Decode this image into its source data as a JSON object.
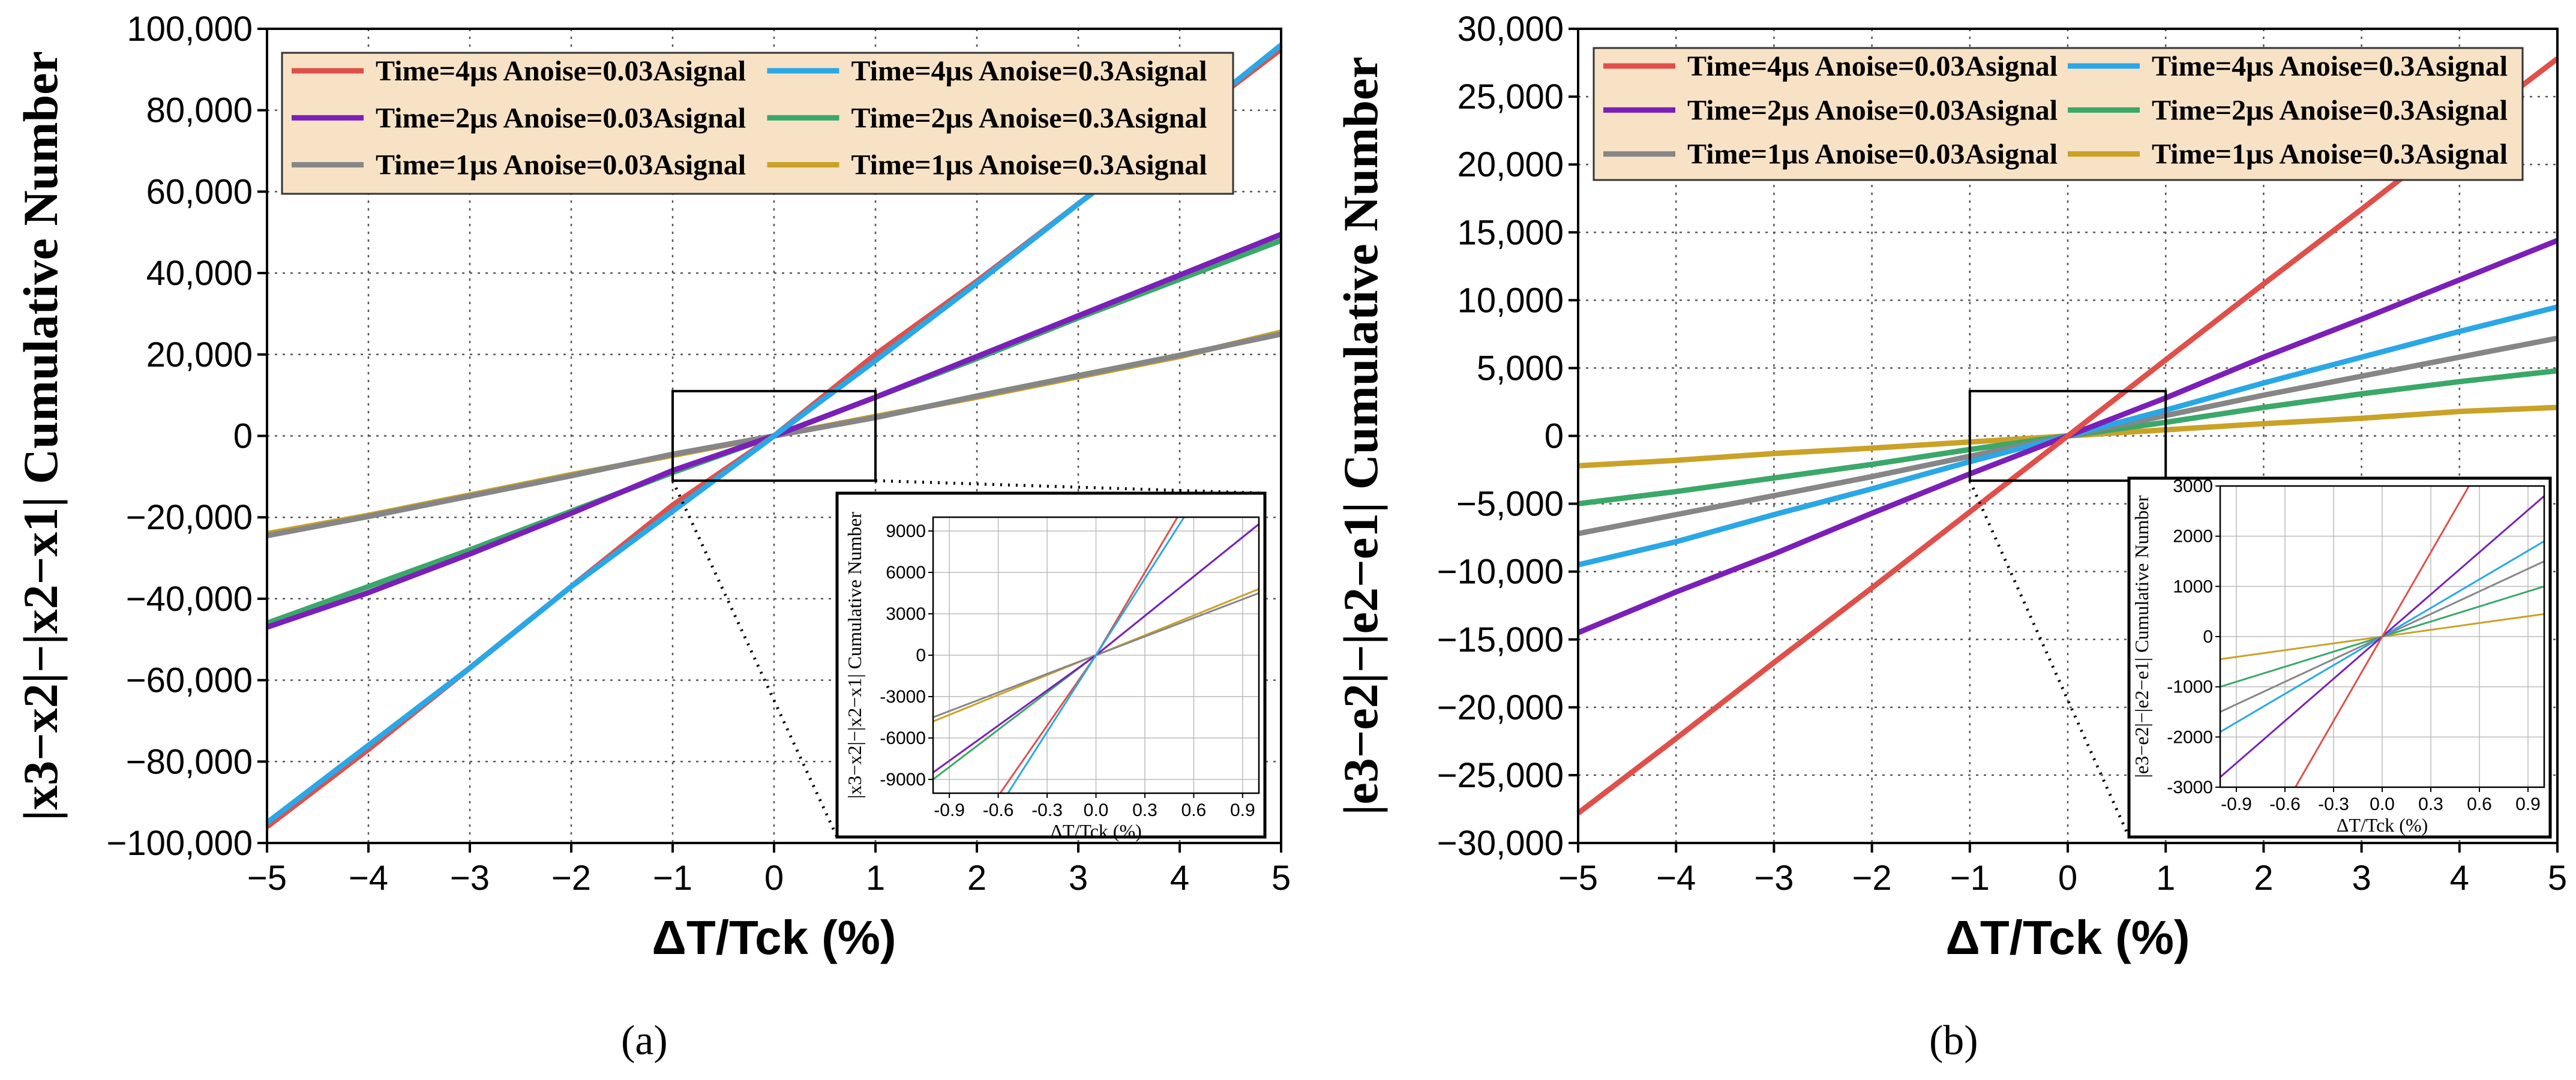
{
  "figure": {
    "caption_a": "(a)",
    "caption_b": "(b)"
  },
  "series_colors": {
    "t4_003": "#e0504a",
    "t4_03": "#2aa7e6",
    "t2_003": "#7b1fb8",
    "t2_03": "#3aa868",
    "t1_003": "#868686",
    "t1_03": "#c9a227"
  },
  "legend_entries": [
    {
      "key": "t4_003",
      "text": "Time=4μs  Anoise=0.03Asignal"
    },
    {
      "key": "t4_03",
      "text": "Time=4μs  Anoise=0.3Asignal"
    },
    {
      "key": "t2_003",
      "text": "Time=2μs  Anoise=0.03Asignal"
    },
    {
      "key": "t2_03",
      "text": "Time=2μs  Anoise=0.3Asignal"
    },
    {
      "key": "t1_003",
      "text": "Time=1μs  Anoise=0.03Asignal"
    },
    {
      "key": "t1_03",
      "text": "Time=1μs  Anoise=0.3Asignal"
    }
  ],
  "chart_data": [
    {
      "id": "a",
      "type": "line",
      "xlabel": "ΔT/Tck (%)",
      "ylabel": "|x3−x2|−|x2−x1| Cumulative Number",
      "xlim": [
        -5,
        5
      ],
      "ylim": [
        -100000,
        100000
      ],
      "xticks": [
        -5,
        -4,
        -3,
        -2,
        -1,
        0,
        1,
        2,
        3,
        4,
        5
      ],
      "xtick_labels": [
        "−5",
        "−4",
        "−3",
        "−2",
        "−1",
        "0",
        "1",
        "2",
        "3",
        "4",
        "5"
      ],
      "yticks": [
        -100000,
        -80000,
        -60000,
        -40000,
        -20000,
        0,
        20000,
        40000,
        60000,
        80000,
        100000
      ],
      "ytick_labels": [
        "−100,000",
        "−80,000",
        "−60,000",
        "−40,000",
        "−20,000",
        "0",
        "20,000",
        "40,000",
        "60,000",
        "80,000",
        "100,000"
      ],
      "x": [
        -5,
        -4,
        -3,
        -2,
        -1,
        0,
        1,
        2,
        3,
        4,
        5
      ],
      "series": [
        {
          "key": "t1_03",
          "values": [
            -24000,
            -19500,
            -14500,
            -9500,
            -4800,
            0,
            4800,
            9500,
            14500,
            19500,
            25500
          ]
        },
        {
          "key": "t1_003",
          "values": [
            -24500,
            -19800,
            -14800,
            -9800,
            -4500,
            0,
            4500,
            9800,
            14800,
            19800,
            25000
          ]
        },
        {
          "key": "t2_03",
          "values": [
            -46000,
            -37000,
            -28000,
            -18500,
            -9000,
            0,
            9500,
            19000,
            29000,
            38500,
            48000
          ]
        },
        {
          "key": "t2_003",
          "values": [
            -47000,
            -38500,
            -29000,
            -19000,
            -8500,
            0,
            9500,
            19500,
            29500,
            39500,
            49500
          ]
        },
        {
          "key": "t4_003",
          "values": [
            -96000,
            -77000,
            -57000,
            -37000,
            -17000,
            0,
            20000,
            38000,
            57000,
            76000,
            95000
          ]
        },
        {
          "key": "t4_03",
          "values": [
            -95000,
            -76000,
            -57000,
            -37000,
            -18500,
            0,
            18500,
            37500,
            57000,
            76000,
            96000
          ]
        }
      ],
      "inset": {
        "xlabel": "ΔT/Tck (%)",
        "ylabel": "|x3−x2|−|x2−x1| Cumulative Number",
        "xlim": [
          -1,
          1
        ],
        "ylim": [
          -10000,
          10000
        ],
        "xticks": [
          -0.9,
          -0.6,
          -0.3,
          0.0,
          0.3,
          0.6,
          0.9
        ],
        "xtick_labels": [
          "-0.9",
          "-0.6",
          "-0.3",
          "0.0",
          "0.3",
          "0.6",
          "0.9"
        ],
        "yticks": [
          -9000,
          -6000,
          -3000,
          0,
          3000,
          6000,
          9000
        ],
        "ytick_labels": [
          "-9000",
          "-6000",
          "-3000",
          "0",
          "3000",
          "6000",
          "9000"
        ]
      }
    },
    {
      "id": "b",
      "type": "line",
      "xlabel": "ΔT/Tck (%)",
      "ylabel": "|e3−e2|−|e2−e1| Cumulative Number",
      "xlim": [
        -5,
        5
      ],
      "ylim": [
        -30000,
        30000
      ],
      "xticks": [
        -5,
        -4,
        -3,
        -2,
        -1,
        0,
        1,
        2,
        3,
        4,
        5
      ],
      "xtick_labels": [
        "−5",
        "−4",
        "−3",
        "−2",
        "−1",
        "0",
        "1",
        "2",
        "3",
        "4",
        "5"
      ],
      "yticks": [
        -30000,
        -25000,
        -20000,
        -15000,
        -10000,
        -5000,
        0,
        5000,
        10000,
        15000,
        20000,
        25000,
        30000
      ],
      "ytick_labels": [
        "−30,000",
        "−25,000",
        "−20,000",
        "−15,000",
        "−10,000",
        "−5,000",
        "0",
        "5,000",
        "10,000",
        "15,000",
        "20,000",
        "25,000",
        "30,000"
      ],
      "x": [
        -5,
        -4,
        -3,
        -2,
        -1,
        0,
        1,
        2,
        3,
        4,
        5
      ],
      "series": [
        {
          "key": "t1_03",
          "values": [
            -2200,
            -1800,
            -1300,
            -900,
            -450,
            0,
            450,
            900,
            1300,
            1800,
            2100
          ]
        },
        {
          "key": "t2_03",
          "values": [
            -5000,
            -4100,
            -3100,
            -2100,
            -1000,
            0,
            1000,
            2100,
            3100,
            4000,
            4800
          ]
        },
        {
          "key": "t1_003",
          "values": [
            -7200,
            -5800,
            -4400,
            -3000,
            -1500,
            0,
            1500,
            3000,
            4400,
            5800,
            7200
          ]
        },
        {
          "key": "t4_03",
          "values": [
            -9500,
            -7800,
            -5800,
            -3900,
            -1900,
            0,
            1900,
            3900,
            5800,
            7700,
            9500
          ]
        },
        {
          "key": "t2_003",
          "values": [
            -14500,
            -11500,
            -8700,
            -5700,
            -2800,
            0,
            2800,
            5800,
            8600,
            11500,
            14400
          ]
        },
        {
          "key": "t4_003",
          "values": [
            -27800,
            -22300,
            -16700,
            -11200,
            -5600,
            0,
            5600,
            11200,
            16700,
            22300,
            27800
          ]
        }
      ],
      "inset": {
        "xlabel": "ΔT/Tck (%)",
        "ylabel": "|e3−e2|−|e2−e1| Cumulative Number",
        "xlim": [
          -1,
          1
        ],
        "ylim": [
          -3000,
          3000
        ],
        "xticks": [
          -0.9,
          -0.6,
          -0.3,
          0.0,
          0.3,
          0.6,
          0.9
        ],
        "xtick_labels": [
          "-0.9",
          "-0.6",
          "-0.3",
          "0.0",
          "0.3",
          "0.6",
          "0.9"
        ],
        "yticks": [
          -3000,
          -2000,
          -1000,
          0,
          1000,
          2000,
          3000
        ],
        "ytick_labels": [
          "-3000",
          "-2000",
          "-1000",
          "0",
          "1000",
          "2000",
          "3000"
        ]
      }
    }
  ]
}
